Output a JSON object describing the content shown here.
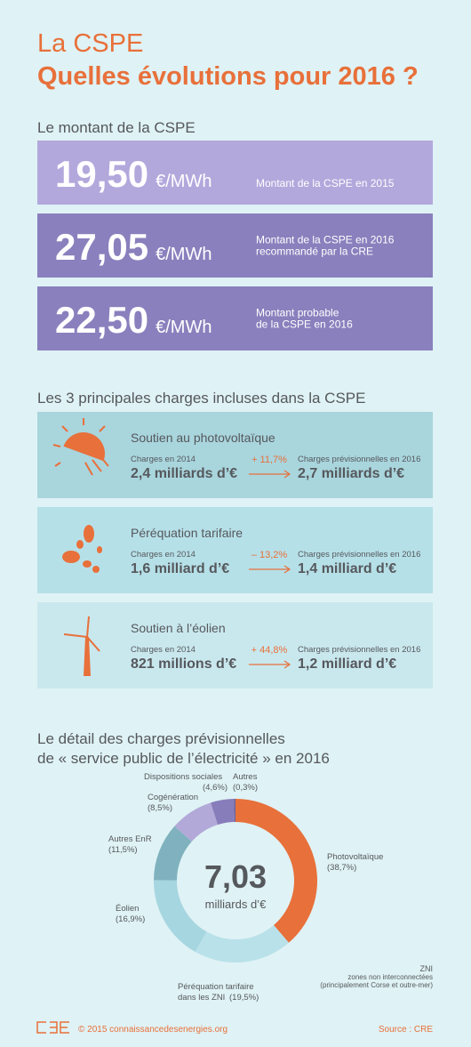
{
  "header": {
    "title": "La CSPE",
    "subtitle": "Quelles évolutions pour 2016 ?"
  },
  "montant": {
    "heading": "Le montant de la CSPE",
    "rows": [
      {
        "amount": "19,50",
        "unit": "€/MWh",
        "description": [
          "Montant de la CSPE en 2015"
        ]
      },
      {
        "amount": "27,05",
        "unit": "€/MWh",
        "description": [
          "Montant de la CSPE en 2016",
          "recommandé par la CRE"
        ]
      },
      {
        "amount": "22,50",
        "unit": "€/MWh",
        "description": [
          "Montant probable",
          "de la CSPE en 2016"
        ]
      }
    ]
  },
  "charges": {
    "heading": "Les 3 principales charges incluses dans la CSPE",
    "cards": [
      {
        "title": "Soutien au photovoltaïque",
        "left_label": "Charges en 2014",
        "left_value": "2,4 milliards d’€",
        "change": "+ 11,7%",
        "right_label": "Charges prévisionnelles en 2016",
        "right_value": "2,7 milliards d’€"
      },
      {
        "title": "Péréquation tarifaire",
        "left_label": "Charges en 2014",
        "left_value": "1,6 milliard d’€",
        "change": "– 13,2%",
        "right_label": "Charges prévisionnelles en 2016",
        "right_value": "1,4 milliard d’€"
      },
      {
        "title": "Soutien à l’éolien",
        "left_label": "Charges en 2014",
        "left_value": "821 millions d’€",
        "change": "+ 44,8%",
        "right_label": "Charges prévisionnelles en 2016",
        "right_value": "1,2 milliard d’€"
      }
    ]
  },
  "chart_data": {
    "type": "donut",
    "title": [
      "Le détail des charges prévisionnelles",
      "de « service public de l’électricité » en 2016"
    ],
    "center_value": "7,03",
    "center_label": "milliards d’€",
    "categories": [
      "Photovoltaïque",
      "Péréquation tarifaire dans les ZNI",
      "Éolien",
      "Autres EnR",
      "Cogénération",
      "Dispositions sociales",
      "Autres"
    ],
    "values": [
      38.7,
      19.5,
      16.9,
      11.5,
      8.5,
      4.6,
      0.3
    ],
    "value_labels": [
      "(38,7%)",
      "(19,5%)",
      "(16,9%)",
      "(11,5%)",
      "(8,5%)",
      "(4,6%)",
      "(0,3%)"
    ],
    "colors": [
      "#e8703a",
      "#b9e1e9",
      "#a6d6e0",
      "#7fb2be",
      "#b2a9d9",
      "#877dbb",
      "#6a6399"
    ],
    "note": [
      "ZNI",
      "zones non interconnectées",
      "(principalement Corse et outre-mer)"
    ]
  },
  "footer": {
    "copyright": "© 2015 connaissancedesenergies.org",
    "source": "Source : CRE"
  }
}
